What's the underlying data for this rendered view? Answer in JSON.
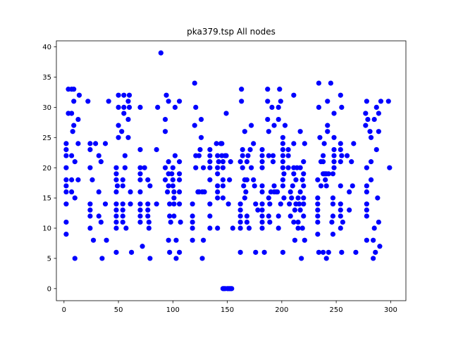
{
  "chart_data": {
    "type": "scatter",
    "title": "pka379.tsp All nodes",
    "xlabel": "",
    "ylabel": "",
    "xlim": [
      -7,
      314
    ],
    "ylim": [
      -2,
      41
    ],
    "xticks": [
      0,
      50,
      100,
      150,
      200,
      250,
      300
    ],
    "yticks": [
      0,
      5,
      10,
      15,
      20,
      25,
      30,
      35,
      40
    ],
    "grid": false,
    "legend": "none",
    "marker_color": "#0000ff",
    "points": [
      [
        2,
        24
      ],
      [
        2,
        23
      ],
      [
        2,
        22
      ],
      [
        2,
        20
      ],
      [
        2,
        18
      ],
      [
        2,
        17
      ],
      [
        2,
        16
      ],
      [
        2,
        14
      ],
      [
        2,
        11
      ],
      [
        2,
        9
      ],
      [
        4,
        33
      ],
      [
        4,
        29
      ],
      [
        7,
        33
      ],
      [
        7,
        29
      ],
      [
        7,
        22
      ],
      [
        7,
        18
      ],
      [
        7,
        16
      ],
      [
        8,
        26
      ],
      [
        9,
        33
      ],
      [
        9,
        31
      ],
      [
        9,
        27
      ],
      [
        10,
        21
      ],
      [
        10,
        15
      ],
      [
        10,
        5
      ],
      [
        13,
        24
      ],
      [
        13,
        18
      ],
      [
        13,
        28
      ],
      [
        14,
        32
      ],
      [
        22,
        31
      ],
      [
        24,
        24
      ],
      [
        24,
        23
      ],
      [
        24,
        20
      ],
      [
        24,
        14
      ],
      [
        24,
        13
      ],
      [
        24,
        12
      ],
      [
        24,
        10
      ],
      [
        26,
        18
      ],
      [
        27,
        8
      ],
      [
        29,
        24
      ],
      [
        32,
        22
      ],
      [
        32,
        16
      ],
      [
        32,
        12
      ],
      [
        34,
        21
      ],
      [
        34,
        11
      ],
      [
        35,
        5
      ],
      [
        38,
        24
      ],
      [
        38,
        14
      ],
      [
        39,
        8
      ],
      [
        41,
        31
      ],
      [
        48,
        20
      ],
      [
        48,
        19
      ],
      [
        48,
        18
      ],
      [
        48,
        16
      ],
      [
        48,
        14
      ],
      [
        48,
        13
      ],
      [
        48,
        12
      ],
      [
        48,
        11
      ],
      [
        48,
        10
      ],
      [
        48,
        6
      ],
      [
        49,
        17
      ],
      [
        50,
        32
      ],
      [
        50,
        27
      ],
      [
        50,
        25
      ],
      [
        50,
        30
      ],
      [
        53,
        26
      ],
      [
        54,
        18
      ],
      [
        54,
        17
      ],
      [
        54,
        14
      ],
      [
        54,
        13
      ],
      [
        54,
        12
      ],
      [
        54,
        11
      ],
      [
        55,
        32
      ],
      [
        55,
        30
      ],
      [
        55,
        29
      ],
      [
        56,
        22
      ],
      [
        56,
        20
      ],
      [
        57,
        10
      ],
      [
        59,
        31
      ],
      [
        59,
        25
      ],
      [
        59,
        28
      ],
      [
        60,
        32
      ],
      [
        60,
        30
      ],
      [
        61,
        16
      ],
      [
        61,
        14
      ],
      [
        62,
        6
      ],
      [
        70,
        30
      ],
      [
        70,
        23
      ],
      [
        70,
        20
      ],
      [
        70,
        19
      ],
      [
        70,
        18
      ],
      [
        70,
        16
      ],
      [
        70,
        14
      ],
      [
        70,
        13
      ],
      [
        70,
        12
      ],
      [
        70,
        11
      ],
      [
        72,
        7
      ],
      [
        74,
        20
      ],
      [
        77,
        18
      ],
      [
        77,
        14
      ],
      [
        77,
        13
      ],
      [
        77,
        12
      ],
      [
        78,
        11
      ],
      [
        78,
        10
      ],
      [
        79,
        5
      ],
      [
        79,
        17
      ],
      [
        85,
        23
      ],
      [
        85,
        14
      ],
      [
        86,
        30
      ],
      [
        89,
        39
      ],
      [
        93,
        28
      ],
      [
        93,
        26
      ],
      [
        93,
        18
      ],
      [
        93,
        20
      ],
      [
        94,
        32
      ],
      [
        95,
        16
      ],
      [
        96,
        31
      ],
      [
        96,
        21
      ],
      [
        96,
        19
      ],
      [
        96,
        17
      ],
      [
        96,
        8
      ],
      [
        97,
        14
      ],
      [
        97,
        12
      ],
      [
        97,
        6
      ],
      [
        98,
        11
      ],
      [
        99,
        19
      ],
      [
        100,
        20
      ],
      [
        100,
        18
      ],
      [
        100,
        17
      ],
      [
        101,
        16
      ],
      [
        101,
        15
      ],
      [
        101,
        14
      ],
      [
        101,
        12
      ],
      [
        102,
        30
      ],
      [
        102,
        22
      ],
      [
        103,
        8
      ],
      [
        103,
        5
      ],
      [
        106,
        31
      ],
      [
        106,
        21
      ],
      [
        106,
        19
      ],
      [
        106,
        18
      ],
      [
        106,
        16
      ],
      [
        106,
        14
      ],
      [
        106,
        6
      ],
      [
        107,
        11
      ],
      [
        118,
        14
      ],
      [
        118,
        12
      ],
      [
        118,
        11
      ],
      [
        118,
        10
      ],
      [
        118,
        8
      ],
      [
        120,
        34
      ],
      [
        120,
        27
      ],
      [
        121,
        30
      ],
      [
        121,
        22
      ],
      [
        121,
        20
      ],
      [
        123,
        16
      ],
      [
        124,
        16
      ],
      [
        124,
        22
      ],
      [
        125,
        23
      ],
      [
        126,
        28
      ],
      [
        126,
        25
      ],
      [
        127,
        16
      ],
      [
        127,
        5
      ],
      [
        128,
        20
      ],
      [
        128,
        8
      ],
      [
        129,
        16
      ],
      [
        134,
        23
      ],
      [
        134,
        22
      ],
      [
        134,
        21
      ],
      [
        134,
        20
      ],
      [
        134,
        18
      ],
      [
        134,
        14
      ],
      [
        134,
        12
      ],
      [
        134,
        10
      ],
      [
        140,
        24
      ],
      [
        141,
        22
      ],
      [
        141,
        20
      ],
      [
        141,
        19
      ],
      [
        141,
        17
      ],
      [
        141,
        16
      ],
      [
        141,
        15
      ],
      [
        141,
        10
      ],
      [
        142,
        21
      ],
      [
        144,
        24
      ],
      [
        145,
        24
      ],
      [
        145,
        22
      ],
      [
        146,
        21
      ],
      [
        146,
        20
      ],
      [
        146,
        18
      ],
      [
        146,
        17
      ],
      [
        146,
        15
      ],
      [
        146,
        0
      ],
      [
        147,
        0
      ],
      [
        148,
        22
      ],
      [
        148,
        0
      ],
      [
        149,
        29
      ],
      [
        149,
        22
      ],
      [
        150,
        0
      ],
      [
        151,
        14
      ],
      [
        151,
        0
      ],
      [
        152,
        0
      ],
      [
        152,
        18
      ],
      [
        153,
        21
      ],
      [
        153,
        0
      ],
      [
        154,
        0
      ],
      [
        155,
        10
      ],
      [
        162,
        21
      ],
      [
        162,
        14
      ],
      [
        162,
        13
      ],
      [
        162,
        12
      ],
      [
        162,
        11
      ],
      [
        162,
        10
      ],
      [
        162,
        6
      ],
      [
        163,
        33
      ],
      [
        163,
        31
      ],
      [
        164,
        23
      ],
      [
        164,
        22
      ],
      [
        164,
        20
      ],
      [
        165,
        17
      ],
      [
        166,
        26
      ],
      [
        166,
        18
      ],
      [
        166,
        15
      ],
      [
        167,
        16
      ],
      [
        168,
        21
      ],
      [
        168,
        18
      ],
      [
        168,
        12
      ],
      [
        168,
        11
      ],
      [
        169,
        22
      ],
      [
        170,
        10
      ],
      [
        171,
        23
      ],
      [
        172,
        27
      ],
      [
        172,
        20
      ],
      [
        174,
        24
      ],
      [
        174,
        18
      ],
      [
        175,
        17
      ],
      [
        176,
        14
      ],
      [
        176,
        6
      ],
      [
        178,
        13
      ],
      [
        182,
        23
      ],
      [
        182,
        22
      ],
      [
        182,
        21
      ],
      [
        182,
        20
      ],
      [
        182,
        17
      ],
      [
        182,
        16
      ],
      [
        182,
        14
      ],
      [
        182,
        13
      ],
      [
        182,
        12
      ],
      [
        182,
        11
      ],
      [
        182,
        10
      ],
      [
        184,
        6
      ],
      [
        187,
        33
      ],
      [
        187,
        31
      ],
      [
        187,
        28
      ],
      [
        188,
        26
      ],
      [
        188,
        22
      ],
      [
        188,
        15
      ],
      [
        188,
        12
      ],
      [
        189,
        14
      ],
      [
        189,
        11
      ],
      [
        190,
        16
      ],
      [
        191,
        30
      ],
      [
        192,
        22
      ],
      [
        192,
        21
      ],
      [
        193,
        17
      ],
      [
        193,
        16
      ],
      [
        193,
        27
      ],
      [
        195,
        16
      ],
      [
        196,
        16
      ],
      [
        197,
        30
      ],
      [
        197,
        12
      ],
      [
        197,
        10
      ],
      [
        197,
        28
      ],
      [
        198,
        33
      ],
      [
        199,
        14
      ],
      [
        199,
        31
      ],
      [
        201,
        25
      ],
      [
        201,
        24
      ],
      [
        201,
        23
      ],
      [
        201,
        22
      ],
      [
        201,
        21
      ],
      [
        201,
        20
      ],
      [
        201,
        18
      ],
      [
        201,
        17
      ],
      [
        201,
        6
      ],
      [
        202,
        15
      ],
      [
        202,
        19
      ],
      [
        203,
        27
      ],
      [
        206,
        23
      ],
      [
        206,
        22
      ],
      [
        206,
        20
      ],
      [
        207,
        14
      ],
      [
        208,
        12
      ],
      [
        208,
        16
      ],
      [
        209,
        15
      ],
      [
        210,
        17
      ],
      [
        211,
        32
      ],
      [
        211,
        24
      ],
      [
        211,
        20
      ],
      [
        211,
        19
      ],
      [
        211,
        11
      ],
      [
        212,
        8
      ],
      [
        212,
        13
      ],
      [
        213,
        18
      ],
      [
        213,
        14
      ],
      [
        214,
        20
      ],
      [
        215,
        15
      ],
      [
        215,
        11
      ],
      [
        215,
        10
      ],
      [
        216,
        14
      ],
      [
        217,
        26
      ],
      [
        217,
        20
      ],
      [
        217,
        16
      ],
      [
        217,
        13
      ],
      [
        218,
        5
      ],
      [
        219,
        18
      ],
      [
        219,
        10
      ],
      [
        220,
        21
      ],
      [
        220,
        19
      ],
      [
        220,
        17
      ],
      [
        220,
        15
      ],
      [
        220,
        14
      ],
      [
        220,
        12
      ],
      [
        221,
        24
      ],
      [
        221,
        8
      ],
      [
        233,
        18
      ],
      [
        233,
        15
      ],
      [
        233,
        14
      ],
      [
        233,
        13
      ],
      [
        233,
        12
      ],
      [
        233,
        11
      ],
      [
        233,
        9
      ],
      [
        234,
        34
      ],
      [
        234,
        30
      ],
      [
        234,
        6
      ],
      [
        235,
        25
      ],
      [
        236,
        17
      ],
      [
        236,
        21
      ],
      [
        238,
        22
      ],
      [
        238,
        21
      ],
      [
        238,
        19
      ],
      [
        238,
        6
      ],
      [
        239,
        19
      ],
      [
        239,
        24
      ],
      [
        240,
        19
      ],
      [
        240,
        18
      ],
      [
        241,
        19
      ],
      [
        241,
        17
      ],
      [
        241,
        5
      ],
      [
        242,
        27
      ],
      [
        242,
        26
      ],
      [
        242,
        31
      ],
      [
        243,
        19
      ],
      [
        243,
        6
      ],
      [
        245,
        34
      ],
      [
        246,
        11
      ],
      [
        247,
        19
      ],
      [
        247,
        15
      ],
      [
        247,
        14
      ],
      [
        247,
        12
      ],
      [
        247,
        9
      ],
      [
        248,
        29
      ],
      [
        248,
        25
      ],
      [
        248,
        23
      ],
      [
        248,
        22
      ],
      [
        248,
        21
      ],
      [
        248,
        20
      ],
      [
        254,
        24
      ],
      [
        254,
        23
      ],
      [
        254,
        21
      ],
      [
        254,
        17
      ],
      [
        254,
        14
      ],
      [
        254,
        13
      ],
      [
        254,
        12
      ],
      [
        254,
        10
      ],
      [
        254,
        32
      ],
      [
        255,
        30
      ],
      [
        255,
        6
      ],
      [
        255,
        22
      ],
      [
        256,
        11
      ],
      [
        260,
        22
      ],
      [
        262,
        16
      ],
      [
        262,
        13
      ],
      [
        264,
        21
      ],
      [
        265,
        17
      ],
      [
        266,
        24
      ],
      [
        268,
        6
      ],
      [
        277,
        29
      ],
      [
        277,
        27
      ],
      [
        278,
        31
      ],
      [
        278,
        20
      ],
      [
        278,
        17
      ],
      [
        278,
        16
      ],
      [
        278,
        14
      ],
      [
        278,
        13
      ],
      [
        278,
        12
      ],
      [
        278,
        8
      ],
      [
        279,
        28
      ],
      [
        281,
        26
      ],
      [
        282,
        25
      ],
      [
        282,
        21
      ],
      [
        282,
        18
      ],
      [
        284,
        8
      ],
      [
        284,
        5
      ],
      [
        285,
        10
      ],
      [
        285,
        28
      ],
      [
        286,
        6
      ],
      [
        287,
        30
      ],
      [
        287,
        23
      ],
      [
        288,
        15
      ],
      [
        289,
        26
      ],
      [
        289,
        11
      ],
      [
        289,
        29
      ],
      [
        290,
        7
      ],
      [
        291,
        31
      ],
      [
        298,
        31
      ],
      [
        299,
        20
      ]
    ]
  }
}
